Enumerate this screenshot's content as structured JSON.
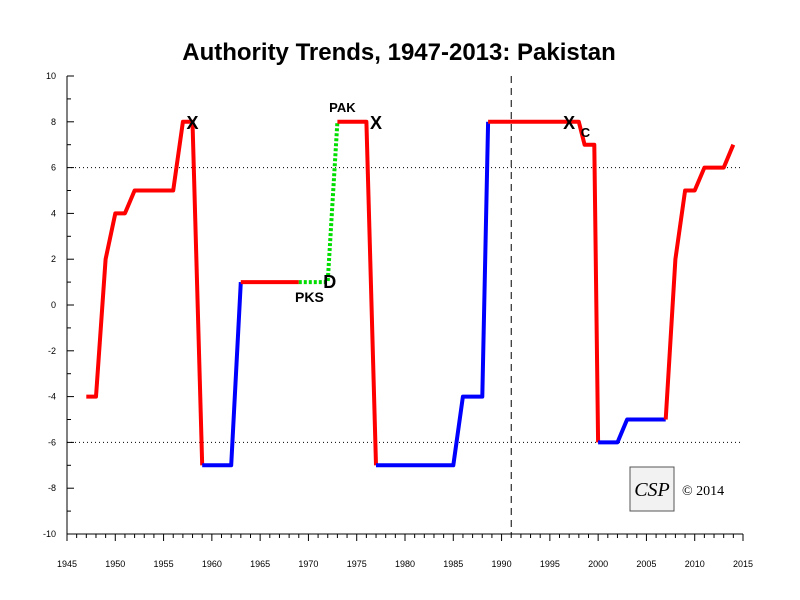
{
  "chart_data": {
    "type": "line",
    "title": "Authority Trends, 1947-2013: Pakistan",
    "xlim": [
      1945,
      2015
    ],
    "ylim": [
      -10,
      10
    ],
    "x_ticks": [
      "1945",
      "1950",
      "1955",
      "1960",
      "1965",
      "1970",
      "1975",
      "1980",
      "1985",
      "1990",
      "1995",
      "2000",
      "2005",
      "2010",
      "2015"
    ],
    "y_ticks": [
      "10",
      "8",
      "6",
      "4",
      "2",
      "0",
      "-2",
      "-4",
      "-6",
      "-8",
      "-10"
    ],
    "reference_lines": [
      {
        "axis": "y",
        "value": 6,
        "style": "dotted"
      },
      {
        "axis": "y",
        "value": -6,
        "style": "dotted"
      },
      {
        "axis": "x",
        "value": 1991,
        "style": "dashed"
      }
    ],
    "colors": {
      "autocracy_democracy": "#ff0000",
      "anocracy": "#0000ff",
      "transition": "#00dd00"
    },
    "series": [
      {
        "color": "#ff0000",
        "style": "solid",
        "points": [
          [
            1947,
            -4
          ],
          [
            1948,
            -4
          ],
          [
            1949,
            2
          ],
          [
            1950,
            4
          ],
          [
            1951,
            4
          ],
          [
            1952,
            5
          ],
          [
            1956,
            5
          ],
          [
            1957,
            8
          ],
          [
            1958,
            8
          ],
          [
            1959,
            -7
          ]
        ]
      },
      {
        "color": "#0000ff",
        "style": "solid",
        "points": [
          [
            1959,
            -7
          ],
          [
            1962,
            -7
          ],
          [
            1963,
            1
          ]
        ]
      },
      {
        "color": "#ff0000",
        "style": "solid",
        "points": [
          [
            1963,
            1
          ],
          [
            1969,
            1
          ]
        ]
      },
      {
        "color": "#00dd00",
        "style": "dotted",
        "points": [
          [
            1969,
            1
          ],
          [
            1972,
            1
          ],
          [
            1973,
            8
          ]
        ]
      },
      {
        "color": "#ff0000",
        "style": "solid",
        "points": [
          [
            1973,
            8
          ],
          [
            1976,
            8
          ],
          [
            1977,
            -7
          ]
        ]
      },
      {
        "color": "#0000ff",
        "style": "solid",
        "points": [
          [
            1977,
            -7
          ],
          [
            1985,
            -7
          ],
          [
            1986,
            -4
          ],
          [
            1988,
            -4
          ],
          [
            1988.6,
            8
          ]
        ]
      },
      {
        "color": "#ff0000",
        "style": "solid",
        "points": [
          [
            1988.6,
            8
          ],
          [
            1998,
            8
          ],
          [
            1998.6,
            7
          ],
          [
            1999.6,
            7
          ],
          [
            2000,
            -6
          ]
        ]
      },
      {
        "color": "#0000ff",
        "style": "solid",
        "points": [
          [
            2000,
            -6
          ],
          [
            2002,
            -6
          ],
          [
            2003,
            -5
          ],
          [
            2007,
            -5
          ]
        ]
      },
      {
        "color": "#ff0000",
        "style": "solid",
        "points": [
          [
            2007,
            -5
          ],
          [
            2008,
            2
          ],
          [
            2009,
            5
          ],
          [
            2010,
            5
          ],
          [
            2011,
            6
          ],
          [
            2013,
            6
          ],
          [
            2014,
            7
          ]
        ]
      }
    ],
    "annotations": [
      {
        "text": "X",
        "x": 1958,
        "y": 8
      },
      {
        "text": "PAK",
        "x": 1973,
        "y": 8
      },
      {
        "text": "X",
        "x": 1977,
        "y": 8
      },
      {
        "text": "D",
        "x": 1972,
        "y": 1
      },
      {
        "text": "PKS",
        "x": 1970,
        "y": 1
      },
      {
        "text": "X",
        "x": 1997,
        "y": 8
      },
      {
        "text": "C",
        "x": 1999,
        "y": 8
      }
    ]
  },
  "logo": {
    "text": "CSP"
  },
  "copyright": "© 2014"
}
